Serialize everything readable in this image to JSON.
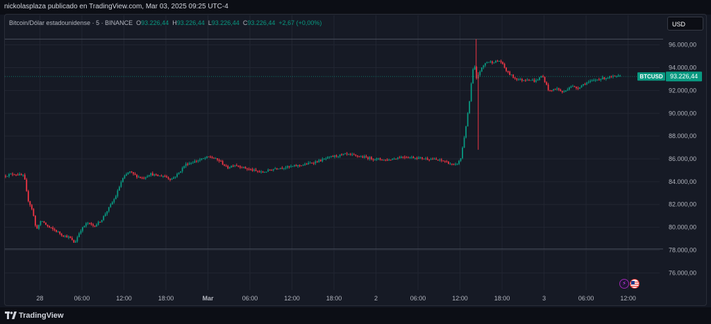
{
  "publisher": "nickolasplaza publicado en TradingView.com, Mar 03, 2025 09:25 UTC-4",
  "legend": {
    "symbol_name": "Bitcoin/Dólar estadounidense · 5 · BINANCE",
    "o_label": "O",
    "o_value": "93.226,44",
    "h_label": "H",
    "h_value": "93.226,44",
    "l_label": "L",
    "l_value": "93.226,44",
    "c_label": "C",
    "c_value": "93.226,44",
    "change": "+2,67 (+0,00%)"
  },
  "currency_button": "USD",
  "colors": {
    "up": "#089981",
    "down": "#f23645",
    "background": "#161a25",
    "grid": "#222632"
  },
  "footer_brand": "TradingView",
  "chart_data": {
    "type": "line",
    "style": "candlestick",
    "symbol": "BTCUSD",
    "last_price": 93226.44,
    "last_price_label": "93.226,44",
    "ylim": [
      74500,
      97500
    ],
    "y_ticks": [
      96000,
      94000,
      92000,
      90000,
      88000,
      86000,
      84000,
      82000,
      80000,
      78000,
      76000
    ],
    "y_tick_labels": [
      "96.000,00",
      "94.000,00",
      "92.000,00",
      "90.000,00",
      "88.000,00",
      "86.000,00",
      "84.000,00",
      "82.000,00",
      "80.000,00",
      "78.000,00",
      "76.000,00"
    ],
    "x_labels": [
      "28",
      "06:00",
      "12:00",
      "18:00",
      "Mar",
      "06:00",
      "12:00",
      "18:00",
      "2",
      "06:00",
      "12:00",
      "18:00",
      "3",
      "06:00",
      "12:00"
    ],
    "x_label_times": [
      0,
      6,
      12,
      18,
      24,
      30,
      36,
      42,
      48,
      54,
      60,
      66,
      72,
      78,
      84
    ],
    "bold_x_labels": [
      "Mar"
    ],
    "time_range_hours": [
      -5,
      88.5
    ],
    "horizontal_lines": [
      96500,
      78100
    ],
    "price": {
      "t": [
        -4.9,
        -3.5,
        -2.7,
        -2.0,
        -1.5,
        -0.8,
        -0.3,
        0.5,
        1.5,
        2.5,
        3.5,
        4.5,
        5.2,
        6.0,
        7.0,
        8.0,
        9.0,
        10.0,
        11.0,
        12.0,
        13.0,
        14.0,
        15.0,
        16.0,
        17.0,
        18.0,
        19.0,
        20.0,
        21.0,
        22.0,
        23.0,
        24.5,
        26.0,
        27.0,
        28.0,
        30.0,
        32.0,
        34.0,
        36.0,
        38.0,
        40.0,
        42.0,
        44.0,
        46.0,
        48.0,
        50.0,
        52.0,
        54.0,
        56.0,
        58.0,
        59.5,
        60.3,
        60.8,
        61.3,
        61.7,
        62.0,
        62.3,
        62.6,
        63.0,
        63.5,
        64.0,
        65.0,
        66.0,
        67.0,
        68.0,
        69.0,
        70.0,
        71.0,
        72.0,
        73.0,
        74.0,
        75.0,
        76.0,
        77.0,
        78.0,
        79.0,
        80.0,
        81.0,
        82.0,
        83.0
      ],
      "v": [
        84500,
        84700,
        84600,
        84500,
        82500,
        81500,
        79800,
        80600,
        80000,
        79700,
        79300,
        79100,
        78600,
        79700,
        80400,
        80100,
        80600,
        81600,
        82600,
        84200,
        84900,
        84500,
        84300,
        84700,
        84500,
        84500,
        84200,
        84700,
        85500,
        85700,
        85900,
        86200,
        85800,
        85200,
        85500,
        85100,
        84800,
        85200,
        85300,
        85500,
        85800,
        86200,
        86400,
        86200,
        86000,
        85900,
        86200,
        86100,
        86000,
        85800,
        85400,
        85900,
        87700,
        89700,
        91500,
        93600,
        94200,
        93000,
        93600,
        94100,
        94500,
        94500,
        94600,
        93600,
        93100,
        92900,
        93000,
        92800,
        93300,
        91900,
        92200,
        91800,
        92400,
        92200,
        92600,
        92800,
        93000,
        93100,
        93200,
        93226
      ]
    }
  }
}
